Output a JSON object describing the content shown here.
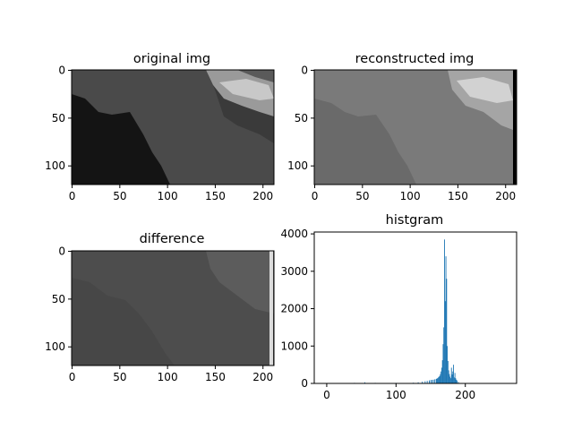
{
  "chart_data": [
    {
      "type": "heatmap",
      "title": "original img",
      "image_shape": [
        120,
        212
      ],
      "xticks": [
        0,
        50,
        100,
        150,
        200
      ],
      "yticks": [
        0,
        50,
        100
      ],
      "colormap": "gray"
    },
    {
      "type": "heatmap",
      "title": "reconstructed img",
      "image_shape": [
        120,
        212
      ],
      "xticks": [
        0,
        50,
        100,
        150,
        200
      ],
      "yticks": [
        0,
        50,
        100
      ],
      "colormap": "gray"
    },
    {
      "type": "heatmap",
      "title": "difference",
      "image_shape": [
        120,
        212
      ],
      "xticks": [
        0,
        50,
        100,
        150,
        200
      ],
      "yticks": [
        0,
        50,
        100
      ],
      "colormap": "gray"
    },
    {
      "type": "bar",
      "title": "histgram",
      "xlim": [
        -18,
        274
      ],
      "ylim": [
        0,
        4050
      ],
      "xticks": [
        0,
        100,
        200
      ],
      "yticks": [
        0,
        1000,
        2000,
        3000,
        4000
      ],
      "bar_color": "#1f77b4",
      "x": [
        0,
        20,
        40,
        55,
        70,
        100,
        125,
        132,
        138,
        142,
        145,
        148,
        150,
        152,
        154,
        156,
        158,
        159,
        160,
        161,
        162,
        163,
        164,
        165,
        166,
        167,
        168,
        169,
        170,
        171,
        172,
        173,
        174,
        175,
        176,
        177,
        178,
        179,
        180,
        181,
        182,
        183,
        184,
        185,
        186,
        187,
        188,
        190
      ],
      "values": [
        10,
        10,
        15,
        30,
        15,
        15,
        20,
        30,
        50,
        60,
        70,
        80,
        90,
        95,
        100,
        110,
        120,
        130,
        140,
        160,
        180,
        200,
        250,
        320,
        420,
        620,
        1050,
        1500,
        3850,
        2200,
        3400,
        2800,
        1000,
        600,
        350,
        250,
        180,
        140,
        420,
        240,
        320,
        500,
        160,
        280,
        140,
        100,
        80,
        40
      ]
    }
  ]
}
